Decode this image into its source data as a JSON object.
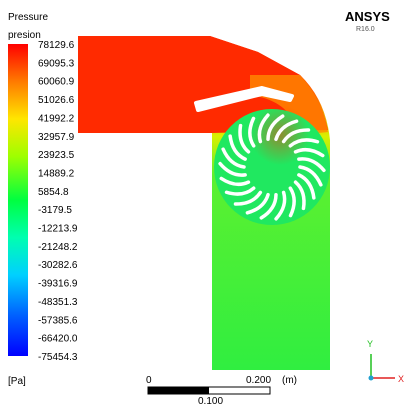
{
  "legend": {
    "title": "Pressure",
    "subtitle": "presion",
    "unit": "[Pa]",
    "labels": [
      "78129.6",
      "69095.3",
      "60060.9",
      "51026.6",
      "41992.2",
      "32957.9",
      "23923.5",
      "14889.2",
      "5854.8",
      "-3179.5",
      "-12213.9",
      "-21248.2",
      "-30282.6",
      "-39316.9",
      "-48351.3",
      "-57385.6",
      "-66420.0",
      "-75454.3"
    ]
  },
  "logo": {
    "name": "ANSYS",
    "version": "R16.0"
  },
  "scale_bar": {
    "start": "0",
    "end": "0.200",
    "unit": "(m)",
    "middle": "0.100"
  },
  "triad": {
    "y": "Y",
    "x": "X"
  }
}
